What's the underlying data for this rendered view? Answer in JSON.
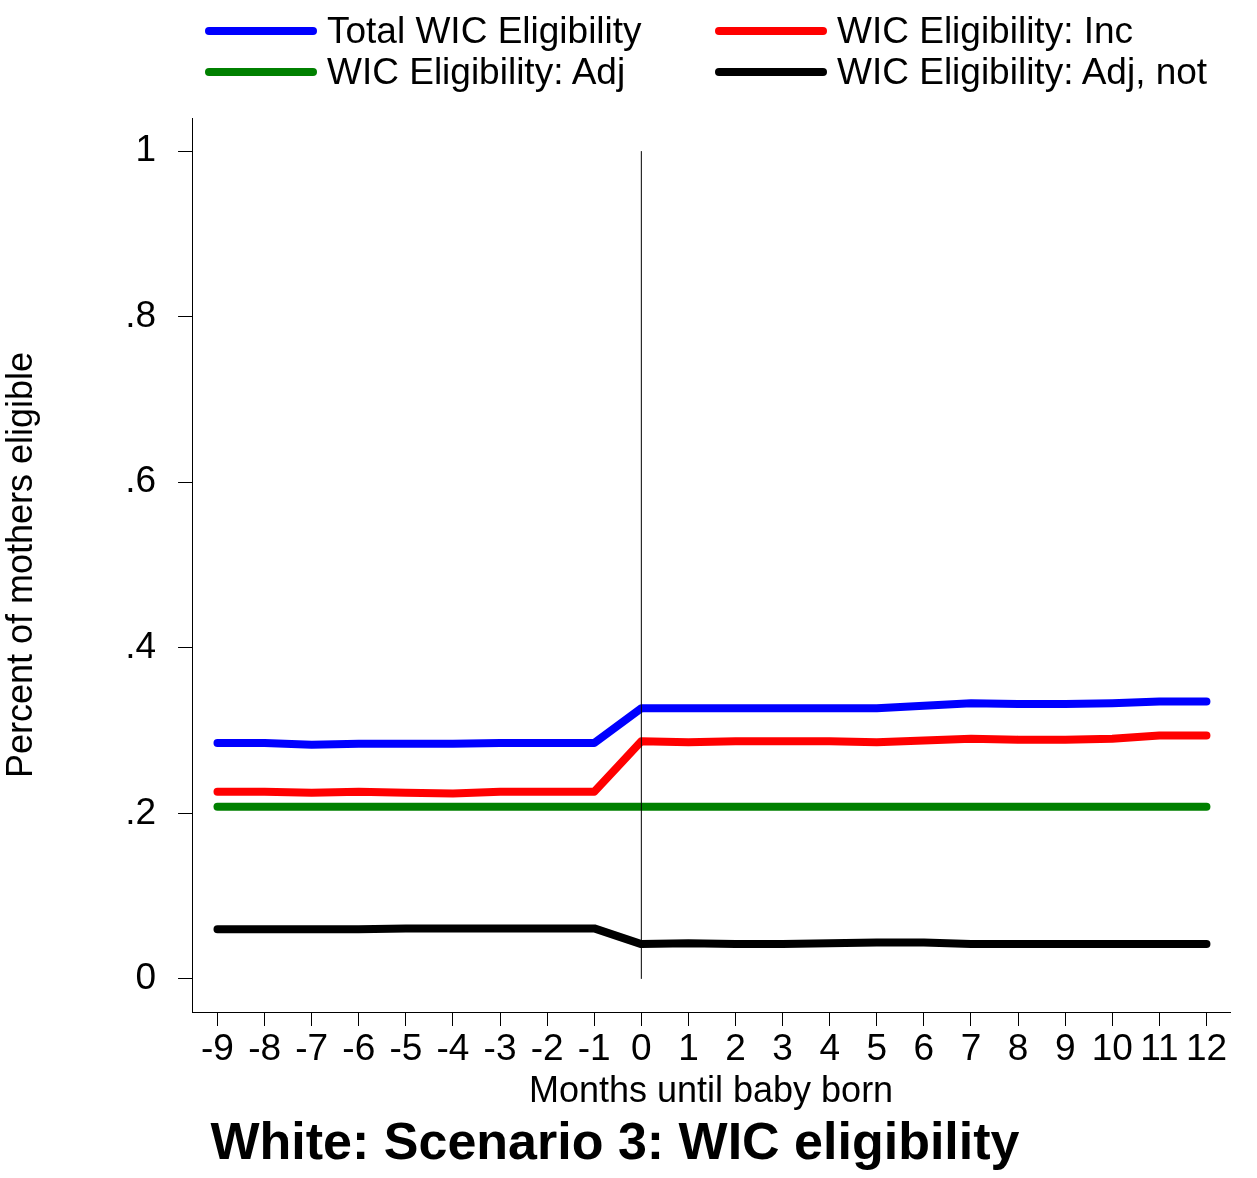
{
  "chart_data": {
    "type": "line",
    "title": "White: Scenario 3: WIC eligibility",
    "xlabel": "Months until baby born",
    "ylabel": "Percent of mothers eligible",
    "x": [
      -9,
      -8,
      -7,
      -6,
      -5,
      -4,
      -3,
      -2,
      -1,
      0,
      1,
      2,
      3,
      4,
      5,
      6,
      7,
      8,
      9,
      10,
      11,
      12
    ],
    "series": [
      {
        "name": "Total WIC Eligibility",
        "color": "#0000ff",
        "values": [
          0.285,
          0.285,
          0.283,
          0.284,
          0.284,
          0.284,
          0.285,
          0.285,
          0.285,
          0.327,
          0.327,
          0.327,
          0.327,
          0.327,
          0.327,
          0.33,
          0.333,
          0.332,
          0.332,
          0.333,
          0.335,
          0.335
        ]
      },
      {
        "name": "WIC Eligibility: Inc",
        "color": "#ff0000",
        "values": [
          0.226,
          0.226,
          0.225,
          0.226,
          0.225,
          0.224,
          0.226,
          0.226,
          0.226,
          0.287,
          0.286,
          0.287,
          0.287,
          0.287,
          0.286,
          0.288,
          0.29,
          0.289,
          0.289,
          0.29,
          0.294,
          0.294
        ]
      },
      {
        "name": "WIC Eligibility: Adj",
        "color": "#008000",
        "values": [
          0.208,
          0.208,
          0.208,
          0.208,
          0.208,
          0.208,
          0.208,
          0.208,
          0.208,
          0.208,
          0.208,
          0.208,
          0.208,
          0.208,
          0.208,
          0.208,
          0.208,
          0.208,
          0.208,
          0.208,
          0.208,
          0.208
        ]
      },
      {
        "name": "WIC Eligibility: Adj, not",
        "color": "#000000",
        "values": [
          0.06,
          0.06,
          0.06,
          0.06,
          0.061,
          0.061,
          0.061,
          0.061,
          0.061,
          0.042,
          0.043,
          0.042,
          0.042,
          0.043,
          0.044,
          0.044,
          0.042,
          0.042,
          0.042,
          0.042,
          0.042,
          0.042
        ]
      }
    ],
    "xlim": [
      -9.54,
      12.5
    ],
    "xticks": [
      -9,
      -8,
      -7,
      -6,
      -5,
      -4,
      -3,
      -2,
      -1,
      0,
      1,
      2,
      3,
      4,
      5,
      6,
      7,
      8,
      9,
      10,
      11,
      12
    ],
    "ylim": [
      -0.04,
      1.04
    ],
    "yticks": [
      0,
      {
        "value": 0.2,
        "label": ".2"
      },
      {
        "value": 0.4,
        "label": ".4"
      },
      {
        "value": 0.6,
        "label": ".6"
      },
      {
        "value": 0.8,
        "label": ".8"
      },
      1
    ],
    "ref_lines": [
      {
        "axis": "x",
        "value": 0,
        "color": "#000000"
      }
    ],
    "legend": "top",
    "grid": false,
    "marker": "none",
    "line_style": "solid"
  }
}
